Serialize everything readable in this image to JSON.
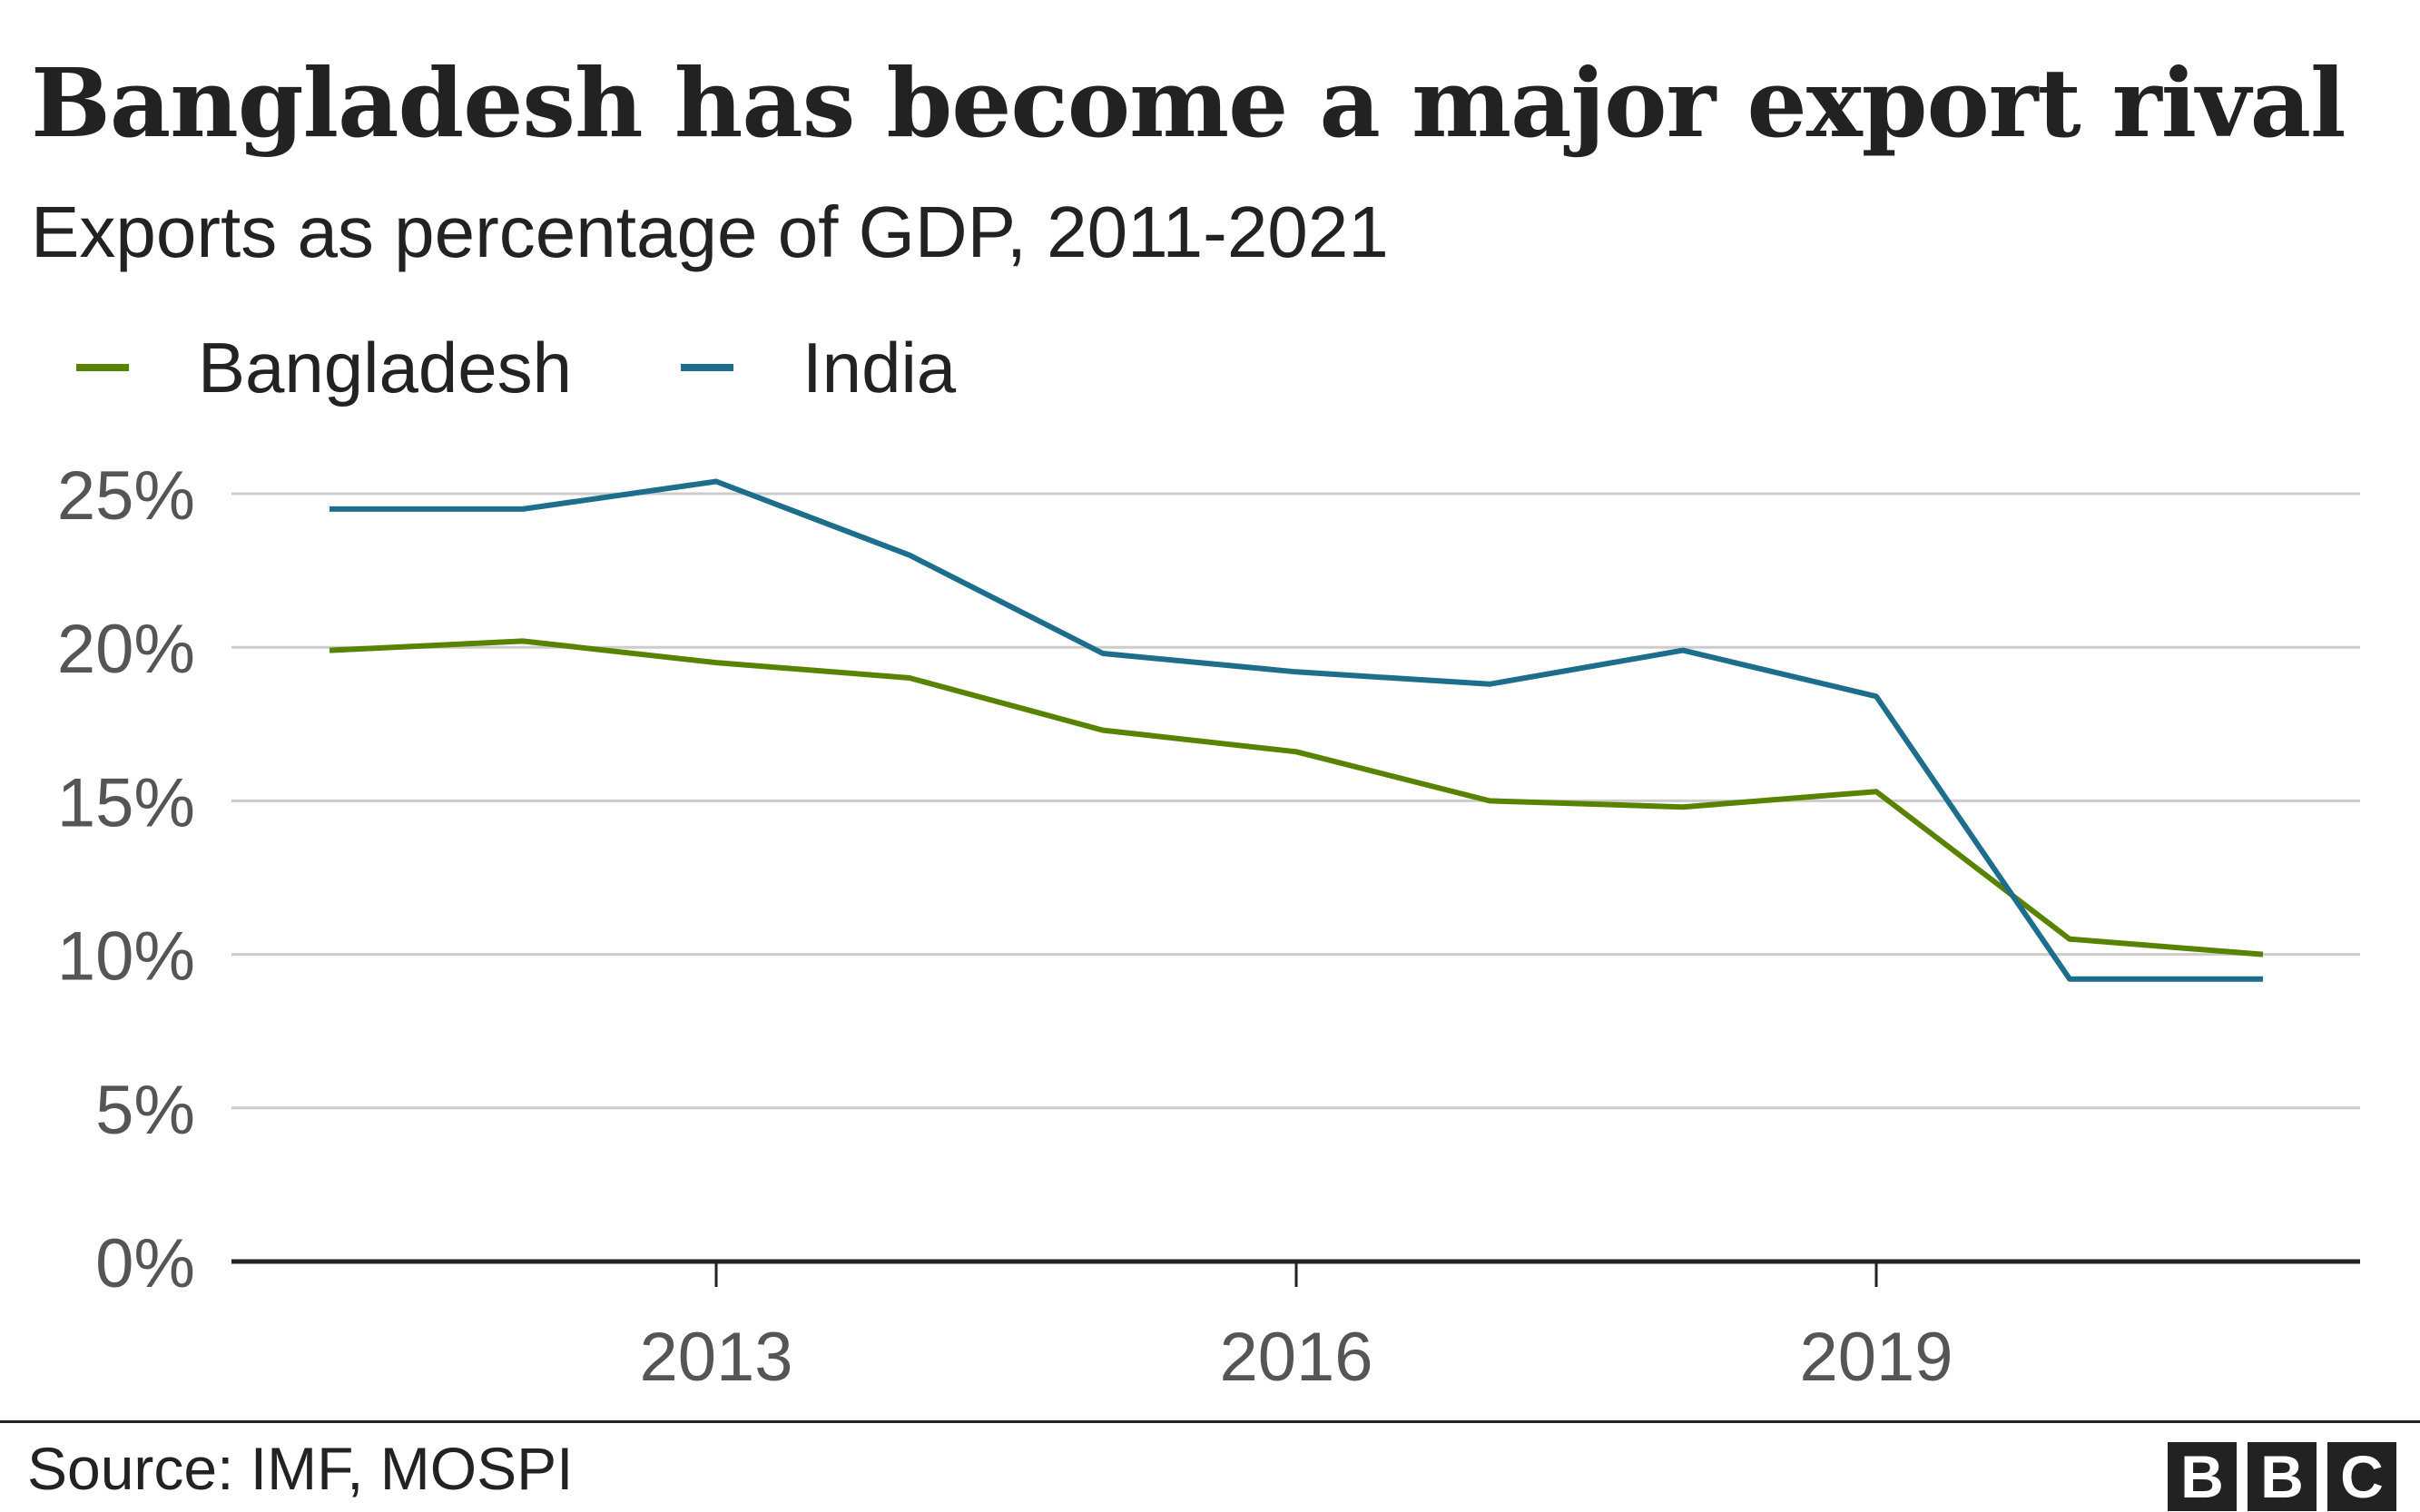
{
  "title": "Bangladesh has become a major export rival",
  "subtitle": "Exports as percentage of GDP, 2011-2021",
  "source": "Source: IMF, MOSPI",
  "logo": {
    "letters": [
      "B",
      "B",
      "C"
    ]
  },
  "colors": {
    "bangladesh": "#588300",
    "india": "#1c6e8c",
    "grid": "#cccccc",
    "axis": "#222222",
    "tick_text": "#555555"
  },
  "chart_data": {
    "type": "line",
    "title": "Bangladesh has become a major export rival",
    "subtitle": "Exports as percentage of GDP, 2011-2021",
    "x": [
      2011,
      2012,
      2013,
      2014,
      2015,
      2016,
      2017,
      2018,
      2019,
      2020,
      2021
    ],
    "series": [
      {
        "name": "Bangladesh",
        "color": "#588300",
        "values": [
          19.9,
          20.2,
          19.5,
          19.0,
          17.3,
          16.6,
          15.0,
          14.8,
          15.3,
          10.5,
          10.0
        ]
      },
      {
        "name": "India",
        "color": "#1c6e8c",
        "values": [
          24.5,
          24.5,
          25.4,
          23.0,
          19.8,
          19.2,
          18.8,
          19.9,
          18.4,
          9.2,
          9.2
        ]
      }
    ],
    "ylim": [
      0,
      25
    ],
    "yticks": [
      0,
      5,
      10,
      15,
      20,
      25
    ],
    "ytick_labels": [
      "0%",
      "5%",
      "10%",
      "15%",
      "20%",
      "25%"
    ],
    "xticks": [
      2013,
      2016,
      2019
    ],
    "xtick_labels": [
      "2013",
      "2016",
      "2019"
    ],
    "xlabel": "",
    "ylabel": "",
    "grid": true,
    "legend": "top-left"
  }
}
